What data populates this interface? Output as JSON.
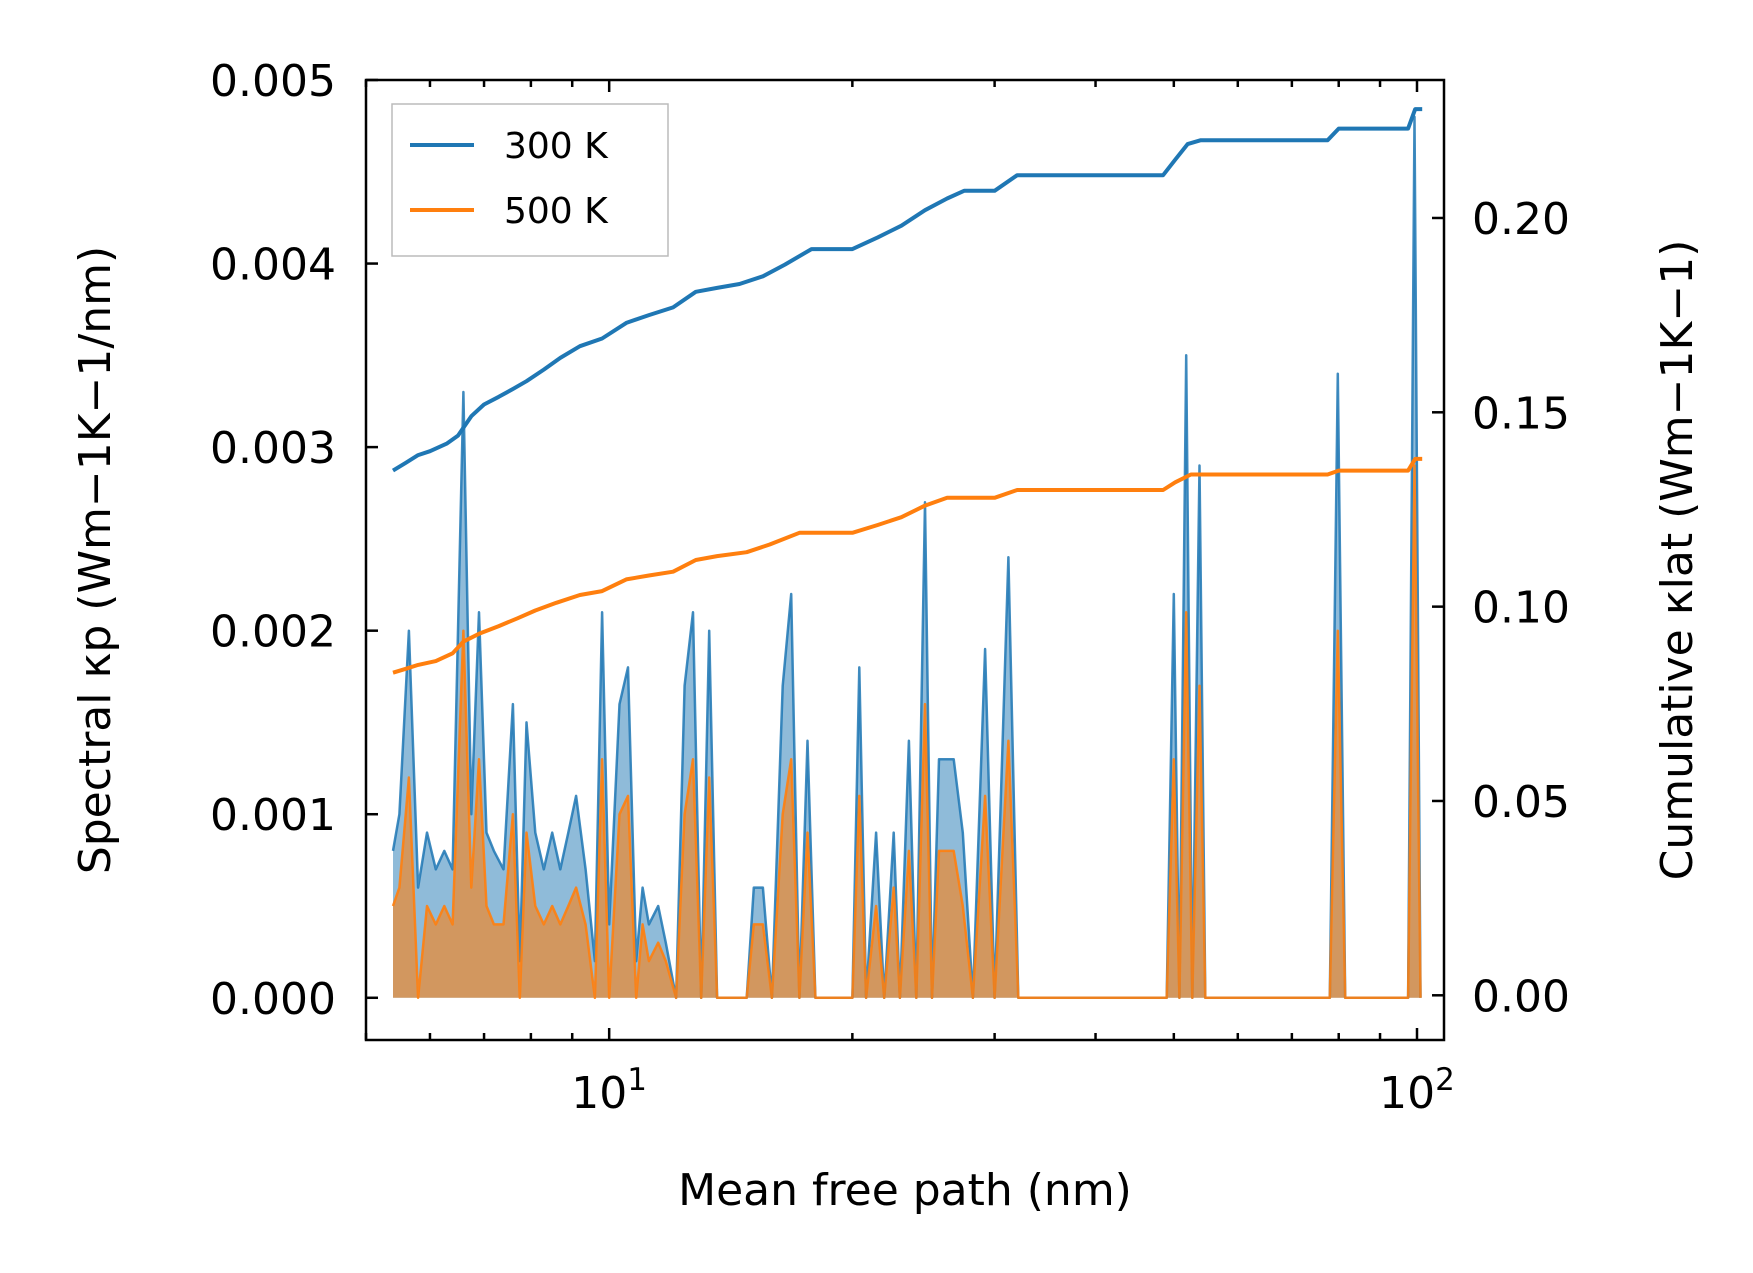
{
  "chart_data": {
    "type": "line",
    "xlabel": "Mean free path (nm)",
    "ylabel_left": "Spectral κp (Wm−1K−1/nm)",
    "ylabel_right": "Cumulative κlat (Wm−1K−1)",
    "x_scale": "log",
    "xlim": [
      5.0,
      108
    ],
    "ylim_left": [
      -0.00023,
      0.005
    ],
    "ylim_right": [
      -0.0115,
      0.2355
    ],
    "x_ticks": [
      {
        "value": 10,
        "base": "10",
        "exp": "1"
      },
      {
        "value": 100,
        "base": "10",
        "exp": "2"
      }
    ],
    "y_ticks_left": [
      {
        "value": 0.0,
        "label": "0.000"
      },
      {
        "value": 0.001,
        "label": "0.001"
      },
      {
        "value": 0.002,
        "label": "0.002"
      },
      {
        "value": 0.003,
        "label": "0.003"
      },
      {
        "value": 0.004,
        "label": "0.004"
      },
      {
        "value": 0.005,
        "label": "0.005"
      }
    ],
    "y_ticks_right": [
      {
        "value": 0.0,
        "label": "0.00"
      },
      {
        "value": 0.05,
        "label": "0.05"
      },
      {
        "value": 0.1,
        "label": "0.10"
      },
      {
        "value": 0.15,
        "label": "0.15"
      },
      {
        "value": 0.2,
        "label": "0.20"
      }
    ],
    "legend": {
      "location": "top-left"
    },
    "series": [
      {
        "name": "300 K",
        "color": "#1f77b4",
        "spectral": [
          [
            5.4,
            0.0008
          ],
          [
            5.5,
            0.001
          ],
          [
            5.65,
            0.002
          ],
          [
            5.8,
            0.0006
          ],
          [
            5.95,
            0.0009
          ],
          [
            6.1,
            0.0007
          ],
          [
            6.25,
            0.0008
          ],
          [
            6.4,
            0.0007
          ],
          [
            6.6,
            0.0033
          ],
          [
            6.75,
            0.001
          ],
          [
            6.9,
            0.0021
          ],
          [
            7.05,
            0.0009
          ],
          [
            7.2,
            0.0008
          ],
          [
            7.4,
            0.0007
          ],
          [
            7.6,
            0.0016
          ],
          [
            7.75,
            0.0002
          ],
          [
            7.9,
            0.0015
          ],
          [
            8.1,
            0.0009
          ],
          [
            8.3,
            0.0007
          ],
          [
            8.5,
            0.0009
          ],
          [
            8.7,
            0.0007
          ],
          [
            8.9,
            0.0009
          ],
          [
            9.1,
            0.0011
          ],
          [
            9.35,
            0.0007
          ],
          [
            9.6,
            0.0002
          ],
          [
            9.8,
            0.0021
          ],
          [
            10.0,
            0.0004
          ],
          [
            10.3,
            0.0016
          ],
          [
            10.55,
            0.0018
          ],
          [
            10.8,
            0.0002
          ],
          [
            11.0,
            0.0006
          ],
          [
            11.2,
            0.0004
          ],
          [
            11.5,
            0.0005
          ],
          [
            11.75,
            0.0003
          ],
          [
            12.1,
            0.0
          ],
          [
            12.4,
            0.0017
          ],
          [
            12.7,
            0.0021
          ],
          [
            13.0,
            0.0
          ],
          [
            13.3,
            0.002
          ],
          [
            13.6,
            0.0
          ],
          [
            14.8,
            0.0
          ],
          [
            15.1,
            0.0006
          ],
          [
            15.5,
            0.0006
          ],
          [
            15.9,
            0.0
          ],
          [
            16.4,
            0.0017
          ],
          [
            16.8,
            0.0022
          ],
          [
            17.2,
            0.0
          ],
          [
            17.6,
            0.0014
          ],
          [
            18.0,
            0.0
          ],
          [
            20.0,
            0.0
          ],
          [
            20.4,
            0.0018
          ],
          [
            20.8,
            0.0
          ],
          [
            21.4,
            0.0009
          ],
          [
            21.9,
            0.0
          ],
          [
            22.5,
            0.0009
          ],
          [
            22.9,
            0.0
          ],
          [
            23.5,
            0.0014
          ],
          [
            24.0,
            0.0
          ],
          [
            24.6,
            0.0027
          ],
          [
            25.1,
            0.0
          ],
          [
            25.6,
            0.0013
          ],
          [
            26.1,
            0.0013
          ],
          [
            26.7,
            0.0013
          ],
          [
            27.4,
            0.0009
          ],
          [
            28.2,
            0.0
          ],
          [
            29.2,
            0.0019
          ],
          [
            30.0,
            0.0
          ],
          [
            31.2,
            0.0024
          ],
          [
            32.1,
            0.0
          ],
          [
            49.0,
            0.0
          ],
          [
            50.0,
            0.0022
          ],
          [
            50.8,
            0.0
          ],
          [
            51.8,
            0.0035
          ],
          [
            52.7,
            0.0
          ],
          [
            53.8,
            0.0029
          ],
          [
            54.7,
            0.0
          ],
          [
            78.0,
            0.0
          ],
          [
            79.8,
            0.0034
          ],
          [
            81.5,
            0.0
          ],
          [
            97.5,
            0.0
          ],
          [
            99.3,
            0.0048
          ],
          [
            101.0,
            0.0
          ]
        ],
        "cumulative": [
          [
            5.4,
            0.135
          ],
          [
            5.6,
            0.137
          ],
          [
            5.8,
            0.139
          ],
          [
            6.0,
            0.14
          ],
          [
            6.3,
            0.142
          ],
          [
            6.5,
            0.144
          ],
          [
            6.75,
            0.149
          ],
          [
            7.0,
            0.152
          ],
          [
            7.3,
            0.154
          ],
          [
            7.6,
            0.156
          ],
          [
            7.9,
            0.158
          ],
          [
            8.3,
            0.161
          ],
          [
            8.7,
            0.164
          ],
          [
            9.2,
            0.167
          ],
          [
            9.8,
            0.169
          ],
          [
            10.5,
            0.173
          ],
          [
            11.2,
            0.175
          ],
          [
            12.0,
            0.177
          ],
          [
            12.8,
            0.181
          ],
          [
            13.6,
            0.182
          ],
          [
            14.5,
            0.183
          ],
          [
            15.5,
            0.185
          ],
          [
            16.5,
            0.188
          ],
          [
            17.8,
            0.192
          ],
          [
            20.0,
            0.192
          ],
          [
            21.5,
            0.195
          ],
          [
            23.0,
            0.198
          ],
          [
            24.6,
            0.202
          ],
          [
            26.2,
            0.205
          ],
          [
            27.5,
            0.207
          ],
          [
            30.0,
            0.207
          ],
          [
            32.0,
            0.211
          ],
          [
            48.5,
            0.211
          ],
          [
            50.2,
            0.215
          ],
          [
            52.0,
            0.219
          ],
          [
            54.0,
            0.22
          ],
          [
            77.5,
            0.22
          ],
          [
            80.0,
            0.223
          ],
          [
            97.5,
            0.223
          ],
          [
            99.5,
            0.228
          ],
          [
            101.5,
            0.228
          ]
        ]
      },
      {
        "name": "500 K",
        "color": "#ff7f0e",
        "spectral": [
          [
            5.4,
            0.0005
          ],
          [
            5.5,
            0.0006
          ],
          [
            5.65,
            0.0012
          ],
          [
            5.8,
            0.0
          ],
          [
            5.95,
            0.0005
          ],
          [
            6.1,
            0.0004
          ],
          [
            6.25,
            0.0005
          ],
          [
            6.4,
            0.0004
          ],
          [
            6.6,
            0.002
          ],
          [
            6.75,
            0.0006
          ],
          [
            6.9,
            0.0013
          ],
          [
            7.05,
            0.0005
          ],
          [
            7.2,
            0.0004
          ],
          [
            7.4,
            0.0004
          ],
          [
            7.6,
            0.001
          ],
          [
            7.75,
            0.0
          ],
          [
            7.9,
            0.0009
          ],
          [
            8.1,
            0.0005
          ],
          [
            8.3,
            0.0004
          ],
          [
            8.5,
            0.0005
          ],
          [
            8.7,
            0.0004
          ],
          [
            8.9,
            0.0005
          ],
          [
            9.1,
            0.0006
          ],
          [
            9.35,
            0.0004
          ],
          [
            9.6,
            0.0
          ],
          [
            9.8,
            0.0013
          ],
          [
            10.0,
            0.0
          ],
          [
            10.3,
            0.001
          ],
          [
            10.55,
            0.0011
          ],
          [
            10.8,
            0.0
          ],
          [
            11.0,
            0.0004
          ],
          [
            11.2,
            0.0002
          ],
          [
            11.5,
            0.0003
          ],
          [
            11.75,
            0.0002
          ],
          [
            12.1,
            0.0
          ],
          [
            12.4,
            0.001
          ],
          [
            12.7,
            0.0013
          ],
          [
            13.0,
            0.0
          ],
          [
            13.3,
            0.0012
          ],
          [
            13.6,
            0.0
          ],
          [
            14.8,
            0.0
          ],
          [
            15.1,
            0.0004
          ],
          [
            15.5,
            0.0004
          ],
          [
            15.9,
            0.0
          ],
          [
            16.4,
            0.001
          ],
          [
            16.8,
            0.0013
          ],
          [
            17.2,
            0.0
          ],
          [
            17.6,
            0.0009
          ],
          [
            18.0,
            0.0
          ],
          [
            20.0,
            0.0
          ],
          [
            20.4,
            0.0011
          ],
          [
            20.8,
            0.0
          ],
          [
            21.4,
            0.0005
          ],
          [
            21.9,
            0.0
          ],
          [
            22.5,
            0.0006
          ],
          [
            22.9,
            0.0
          ],
          [
            23.5,
            0.0008
          ],
          [
            24.0,
            0.0
          ],
          [
            24.6,
            0.0016
          ],
          [
            25.1,
            0.0
          ],
          [
            25.6,
            0.0008
          ],
          [
            26.1,
            0.0008
          ],
          [
            26.7,
            0.0008
          ],
          [
            27.4,
            0.0005
          ],
          [
            28.2,
            0.0
          ],
          [
            29.2,
            0.0011
          ],
          [
            30.0,
            0.0
          ],
          [
            31.2,
            0.0014
          ],
          [
            32.1,
            0.0
          ],
          [
            49.0,
            0.0
          ],
          [
            50.0,
            0.0013
          ],
          [
            50.8,
            0.0
          ],
          [
            51.8,
            0.0021
          ],
          [
            52.7,
            0.0
          ],
          [
            53.8,
            0.0017
          ],
          [
            54.7,
            0.0
          ],
          [
            78.0,
            0.0
          ],
          [
            79.8,
            0.002
          ],
          [
            81.5,
            0.0
          ],
          [
            97.5,
            0.0
          ],
          [
            99.3,
            0.0029
          ],
          [
            101.0,
            0.0
          ]
        ],
        "cumulative": [
          [
            5.4,
            0.083
          ],
          [
            5.6,
            0.084
          ],
          [
            5.8,
            0.085
          ],
          [
            6.1,
            0.086
          ],
          [
            6.4,
            0.088
          ],
          [
            6.6,
            0.091
          ],
          [
            6.9,
            0.093
          ],
          [
            7.3,
            0.095
          ],
          [
            7.7,
            0.097
          ],
          [
            8.1,
            0.099
          ],
          [
            8.6,
            0.101
          ],
          [
            9.2,
            0.103
          ],
          [
            9.8,
            0.104
          ],
          [
            10.5,
            0.107
          ],
          [
            11.2,
            0.108
          ],
          [
            12.0,
            0.109
          ],
          [
            12.8,
            0.112
          ],
          [
            13.6,
            0.113
          ],
          [
            14.8,
            0.114
          ],
          [
            15.8,
            0.116
          ],
          [
            17.2,
            0.119
          ],
          [
            20.0,
            0.119
          ],
          [
            21.5,
            0.121
          ],
          [
            23.0,
            0.123
          ],
          [
            24.6,
            0.126
          ],
          [
            26.2,
            0.128
          ],
          [
            27.5,
            0.128
          ],
          [
            30.0,
            0.128
          ],
          [
            32.0,
            0.13
          ],
          [
            48.5,
            0.13
          ],
          [
            50.2,
            0.132
          ],
          [
            52.5,
            0.134
          ],
          [
            54.0,
            0.134
          ],
          [
            77.5,
            0.134
          ],
          [
            80.0,
            0.135
          ],
          [
            97.5,
            0.135
          ],
          [
            99.5,
            0.138
          ],
          [
            101.5,
            0.138
          ]
        ]
      }
    ]
  }
}
